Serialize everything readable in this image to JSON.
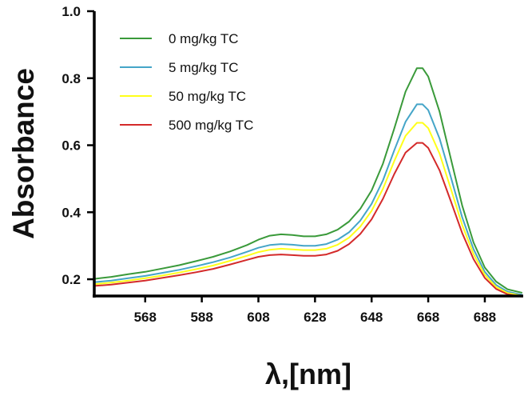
{
  "chart_data": {
    "type": "line",
    "title": "",
    "xlabel": "λ,[nm]",
    "ylabel": "Absorbance",
    "xlim": [
      550,
      701
    ],
    "ylim": [
      0.15,
      1.0
    ],
    "xticks": [
      568,
      588,
      608,
      628,
      648,
      668,
      688
    ],
    "yticks": [
      0.2,
      0.4,
      0.6,
      0.8,
      1.0
    ],
    "ytick_labels": [
      "0.2",
      "0.4",
      "0.6",
      "0.8",
      "1.0"
    ],
    "grid": false,
    "legend_position": "top-left",
    "x": [
      550,
      556,
      562,
      568,
      574,
      580,
      586,
      592,
      598,
      604,
      608,
      612,
      616,
      620,
      624,
      628,
      632,
      636,
      640,
      644,
      648,
      652,
      656,
      660,
      664,
      666,
      668,
      672,
      676,
      680,
      684,
      688,
      692,
      696,
      701
    ],
    "series": [
      {
        "name": "0 mg/kg TC",
        "color": "#3a9a3a",
        "values": [
          0.201,
          0.207,
          0.215,
          0.222,
          0.232,
          0.242,
          0.254,
          0.267,
          0.283,
          0.302,
          0.318,
          0.33,
          0.334,
          0.332,
          0.328,
          0.328,
          0.334,
          0.348,
          0.372,
          0.41,
          0.465,
          0.545,
          0.65,
          0.76,
          0.83,
          0.83,
          0.805,
          0.7,
          0.56,
          0.42,
          0.31,
          0.235,
          0.193,
          0.17,
          0.16
        ]
      },
      {
        "name": "5 mg/kg TC",
        "color": "#45a5c8",
        "values": [
          0.191,
          0.196,
          0.203,
          0.21,
          0.219,
          0.228,
          0.239,
          0.251,
          0.265,
          0.282,
          0.294,
          0.302,
          0.305,
          0.303,
          0.3,
          0.3,
          0.305,
          0.318,
          0.34,
          0.375,
          0.425,
          0.495,
          0.585,
          0.67,
          0.722,
          0.722,
          0.705,
          0.62,
          0.505,
          0.385,
          0.29,
          0.222,
          0.183,
          0.163,
          0.154
        ]
      },
      {
        "name": "50 mg/kg TC",
        "color": "#ffff1a",
        "values": [
          0.185,
          0.19,
          0.196,
          0.203,
          0.211,
          0.22,
          0.23,
          0.241,
          0.255,
          0.27,
          0.281,
          0.288,
          0.291,
          0.289,
          0.287,
          0.287,
          0.291,
          0.303,
          0.324,
          0.357,
          0.404,
          0.47,
          0.553,
          0.628,
          0.667,
          0.667,
          0.651,
          0.575,
          0.47,
          0.362,
          0.275,
          0.213,
          0.177,
          0.159,
          0.151
        ]
      },
      {
        "name": "500 mg/kg TC",
        "color": "#d42a2a",
        "values": [
          0.18,
          0.184,
          0.19,
          0.196,
          0.204,
          0.212,
          0.221,
          0.231,
          0.244,
          0.258,
          0.267,
          0.272,
          0.274,
          0.272,
          0.27,
          0.27,
          0.274,
          0.285,
          0.305,
          0.335,
          0.379,
          0.44,
          0.514,
          0.578,
          0.607,
          0.607,
          0.592,
          0.525,
          0.433,
          0.338,
          0.26,
          0.204,
          0.171,
          0.155,
          0.148
        ]
      }
    ]
  }
}
